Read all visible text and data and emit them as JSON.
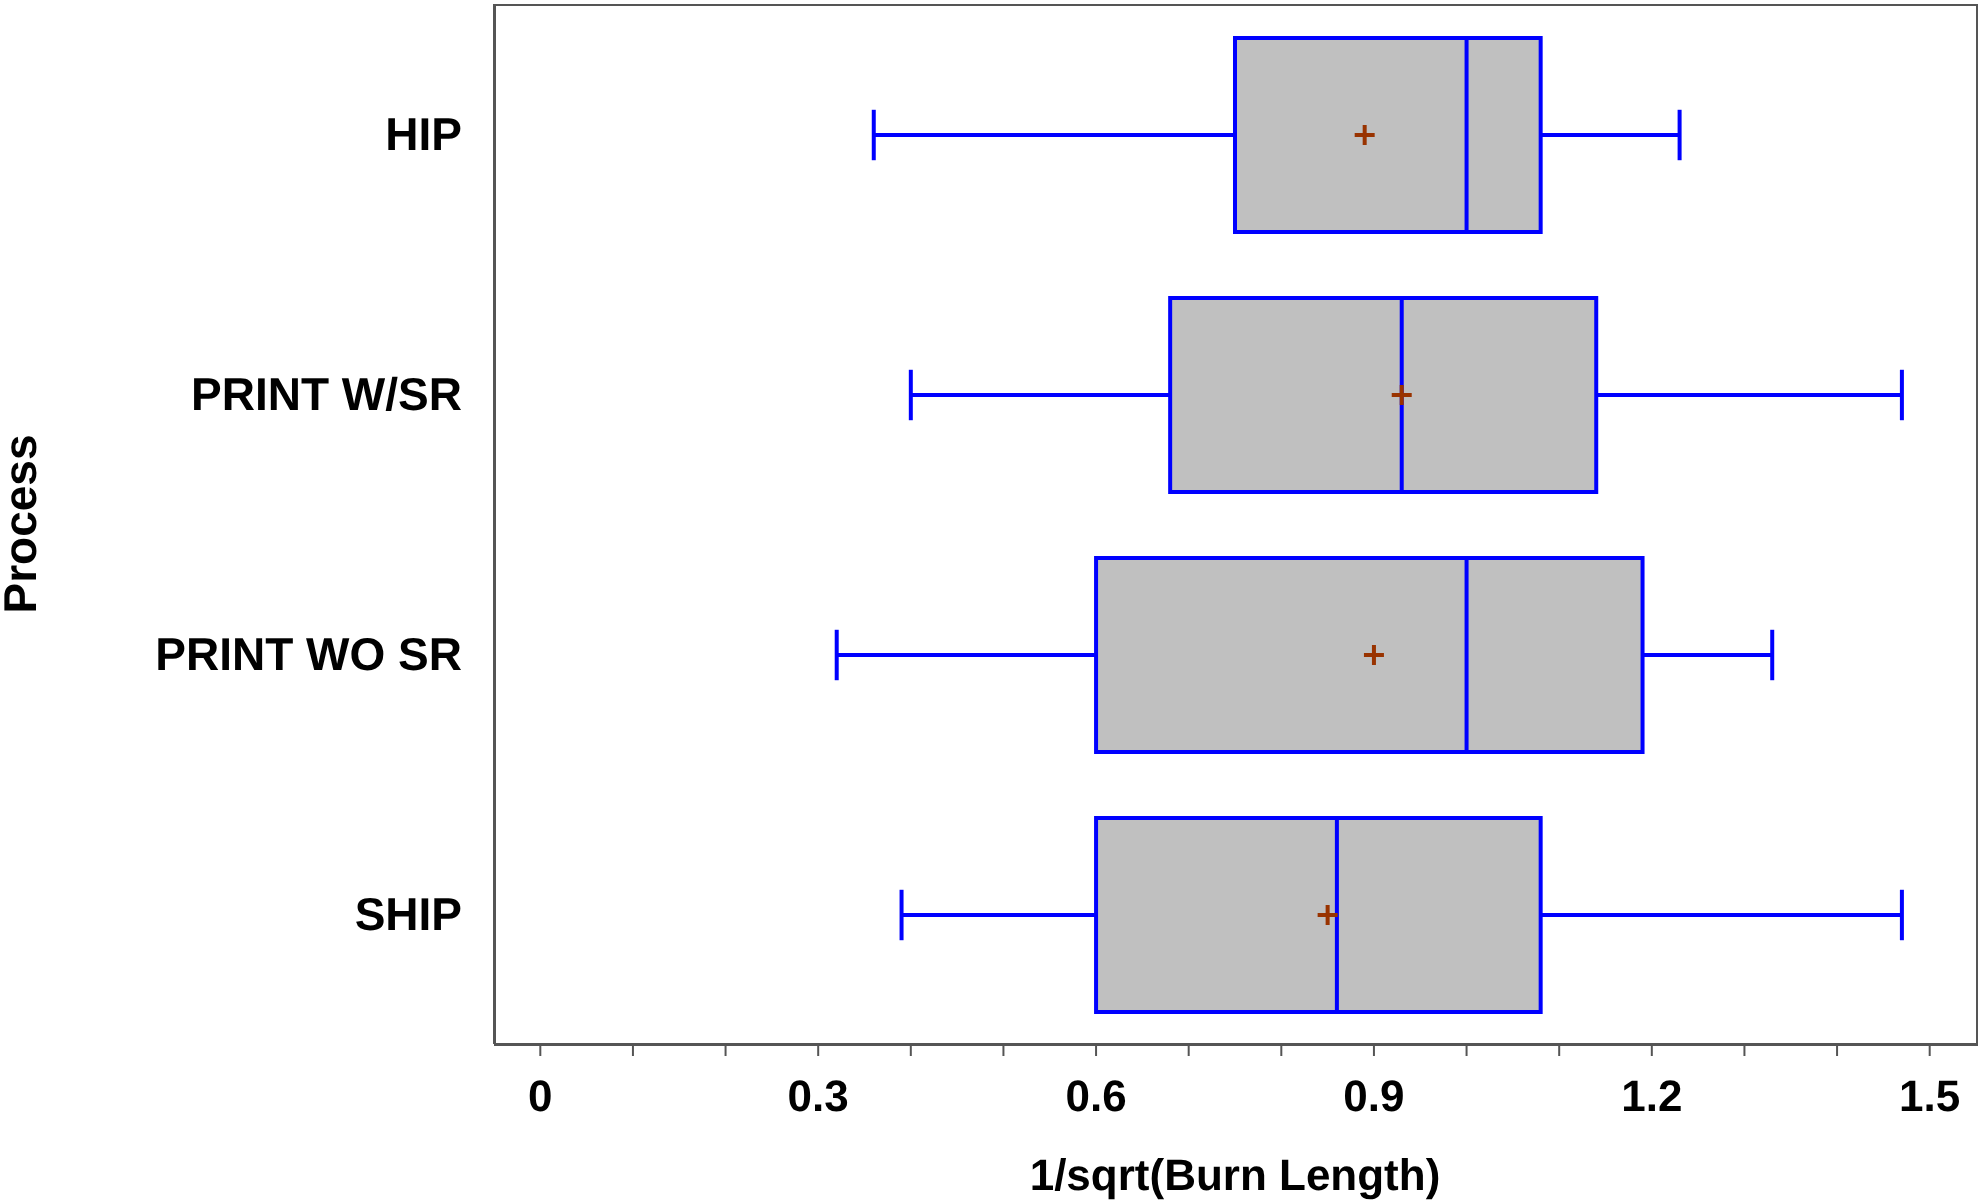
{
  "chart_data": {
    "type": "box",
    "orientation": "horizontal",
    "xlabel": "1/sqrt(Burn Length)",
    "ylabel": "Process",
    "categories": [
      "HIP",
      "PRINT W/SR",
      "PRINT WO SR",
      "SHIP"
    ],
    "color": "#c0c0c0",
    "boxes": [
      {
        "low": 0.36,
        "q1": 0.75,
        "median": 1.0,
        "q3": 1.08,
        "high": 1.23,
        "mean": 0.89
      },
      {
        "low": 0.4,
        "q1": 0.68,
        "median": 0.93,
        "q3": 1.14,
        "high": 1.47,
        "mean": 0.93
      },
      {
        "low": 0.32,
        "q1": 0.6,
        "median": 1.0,
        "q3": 1.19,
        "high": 1.33,
        "mean": 0.9
      },
      {
        "low": 0.39,
        "q1": 0.6,
        "median": 0.86,
        "q3": 1.08,
        "high": 1.47,
        "mean": 0.85
      }
    ],
    "xlim": [
      -0.05,
      1.55
    ],
    "xticks": [
      0,
      {
        "value": 0.1,
        "label": null
      },
      {
        "value": 0.2,
        "label": null
      },
      0.3,
      {
        "value": 0.4,
        "label": null
      },
      {
        "value": 0.5,
        "label": null
      },
      0.6,
      {
        "value": 0.7,
        "label": null
      },
      {
        "value": 0.8,
        "label": null
      },
      0.9,
      {
        "value": 1.0,
        "label": null
      },
      {
        "value": 1.1,
        "label": null
      },
      1.2,
      {
        "value": 1.3,
        "label": null
      },
      {
        "value": 1.4,
        "label": null
      },
      1.5
    ],
    "grid": false,
    "legend": false
  }
}
